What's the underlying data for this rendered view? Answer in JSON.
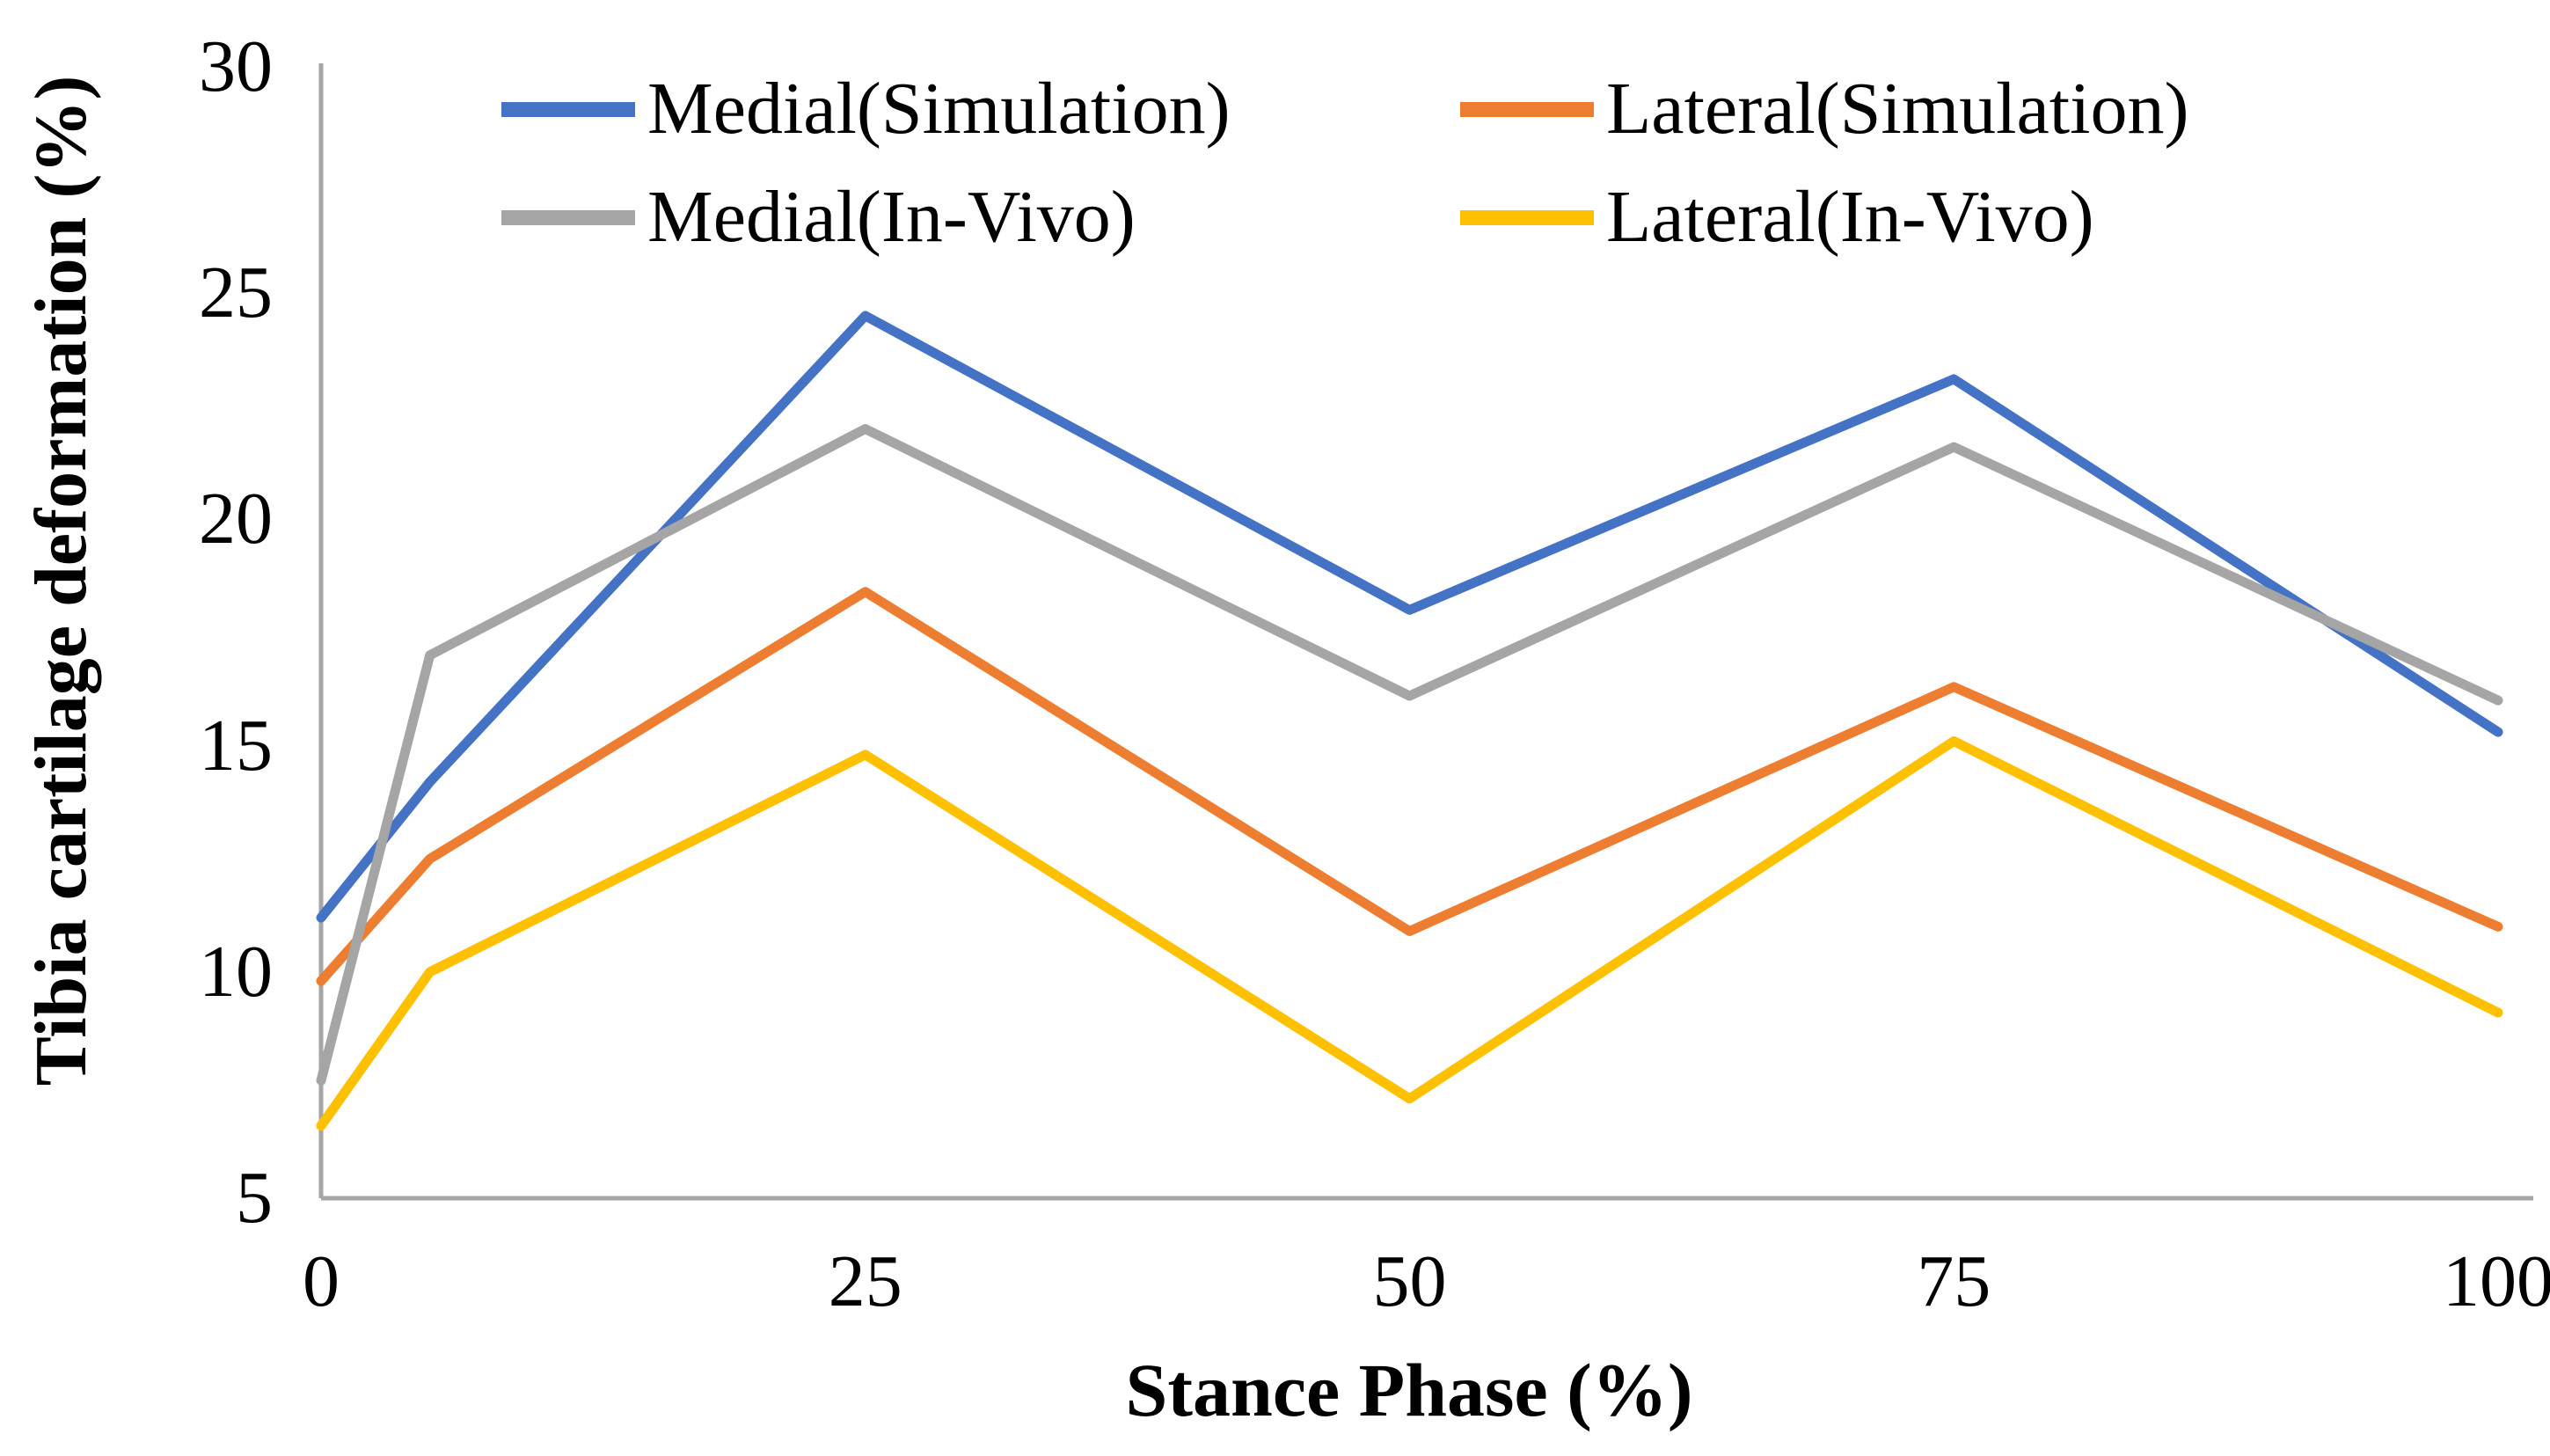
{
  "chart_data": {
    "type": "line",
    "title": "",
    "xlabel": "Stance Phase (%)",
    "ylabel": "Tibia cartilage deformation (%)",
    "x": [
      0,
      5,
      25,
      50,
      75,
      100
    ],
    "series": [
      {
        "name": "Medial(Simulation)",
        "color": "#4472C4",
        "values": [
          11.2,
          14.2,
          24.5,
          18.0,
          23.1,
          15.3
        ]
      },
      {
        "name": "Lateral(Simulation)",
        "color": "#ED7D31",
        "values": [
          9.8,
          12.5,
          18.4,
          10.9,
          16.3,
          11.0
        ]
      },
      {
        "name": "Medial(In-Vivo)",
        "color": "#A5A5A5",
        "values": [
          7.6,
          17.0,
          22.0,
          16.1,
          21.6,
          16.0
        ]
      },
      {
        "name": "Lateral(In-Vivo)",
        "color": "#FFC000",
        "values": [
          6.6,
          10.0,
          14.8,
          7.2,
          15.1,
          9.1
        ]
      }
    ],
    "x_ticks": [
      0,
      25,
      50,
      75,
      100
    ],
    "y_ticks": [
      5,
      10,
      15,
      20,
      25,
      30
    ],
    "xlim": [
      0,
      100
    ],
    "ylim": [
      5,
      30
    ],
    "grid": false,
    "legend_position": "top-inside",
    "axis_color": "#A6A6A6",
    "text_color": "#000000"
  }
}
